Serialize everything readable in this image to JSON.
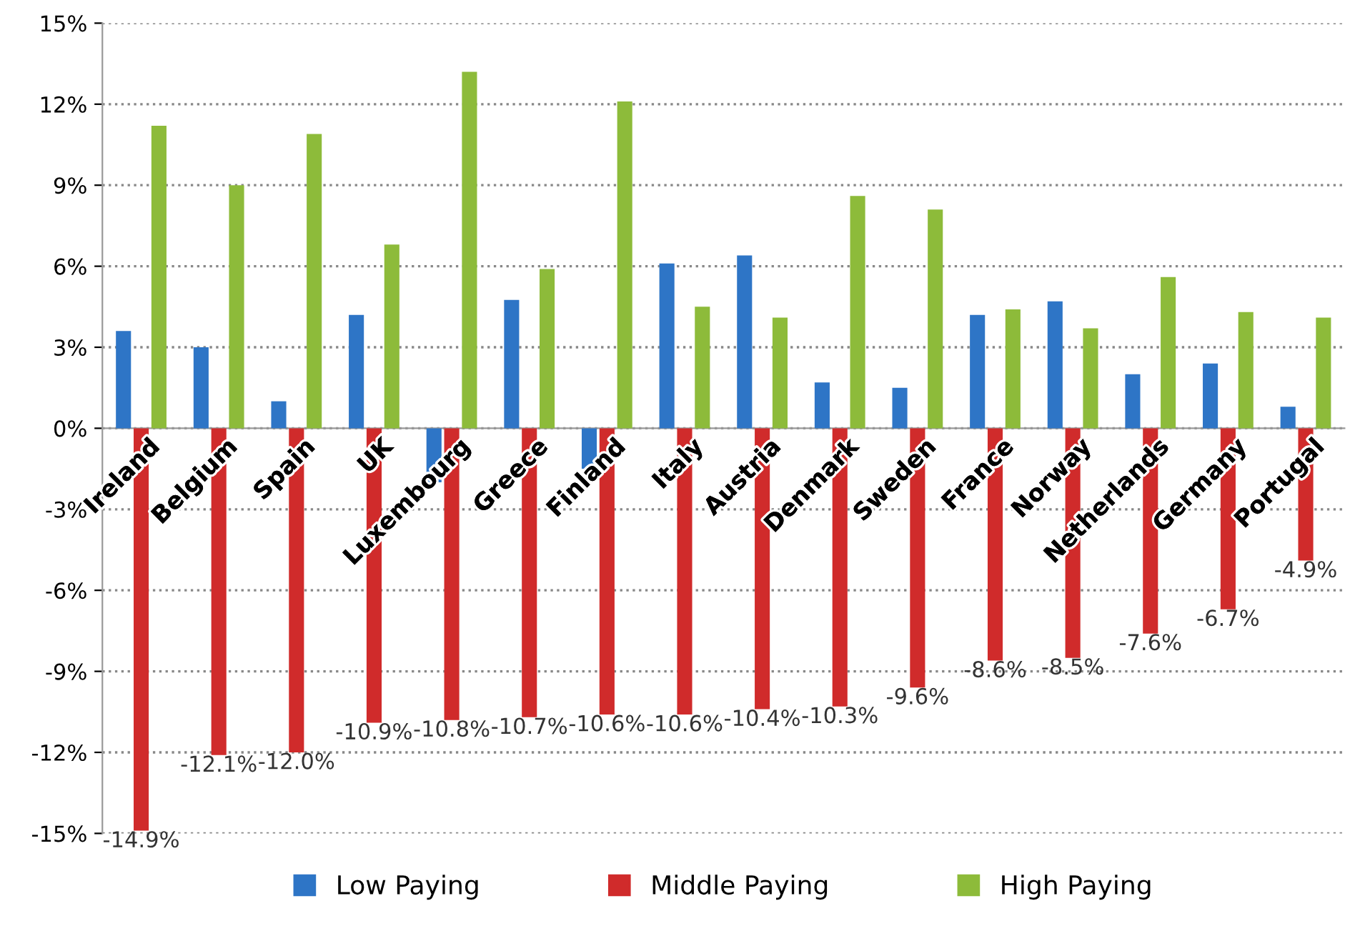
{
  "chart_data": {
    "type": "bar",
    "categories": [
      "Ireland",
      "Belgium",
      "Spain",
      "UK",
      "Luxembourg",
      "Greece",
      "Finland",
      "Italy",
      "Austria",
      "Denmark",
      "Sweden",
      "France",
      "Norway",
      "Netherlands",
      "Germany",
      "Portugal"
    ],
    "series": [
      {
        "name": "Low Paying",
        "color": "#2e75c6",
        "values": [
          3.6,
          3.0,
          1.0,
          4.2,
          -2.0,
          4.75,
          -1.5,
          6.1,
          6.4,
          1.7,
          1.5,
          4.2,
          4.7,
          2.0,
          2.4,
          0.8
        ]
      },
      {
        "name": "Middle Paying",
        "color": "#d02b2b",
        "values": [
          -14.9,
          -12.1,
          -12.0,
          -10.9,
          -10.8,
          -10.7,
          -10.6,
          -10.6,
          -10.4,
          -10.3,
          -9.6,
          -8.6,
          -8.5,
          -7.6,
          -6.7,
          -4.9
        ],
        "value_labels": [
          "-14.9%",
          "-12.1%",
          "-12.0%",
          "-10.9%",
          "-10.8%",
          "-10.7%",
          "-10.6%",
          "-10.6%",
          "-10.4%",
          "-10.3%",
          "-9.6%",
          "-8.6%",
          "-8.5%",
          "-7.6%",
          "-6.7%",
          "-4.9%"
        ]
      },
      {
        "name": "High Paying",
        "color": "#8dbb3a",
        "values": [
          11.2,
          9.0,
          10.9,
          6.8,
          13.2,
          5.9,
          12.1,
          4.5,
          4.1,
          8.6,
          8.1,
          4.4,
          3.7,
          5.6,
          4.3,
          4.1
        ]
      }
    ],
    "ylim": [
      -15,
      15
    ],
    "yticks": [
      {
        "value": -15,
        "label": "-15%"
      },
      {
        "value": -12,
        "label": "-12%"
      },
      {
        "value": -9,
        "label": "-9%"
      },
      {
        "value": -6,
        "label": "-6%"
      },
      {
        "value": -3,
        "label": "-3%"
      },
      {
        "value": 0,
        "label": "0%"
      },
      {
        "value": 3,
        "label": "3%"
      },
      {
        "value": 6,
        "label": "6%"
      },
      {
        "value": 9,
        "label": "9%"
      },
      {
        "value": 12,
        "label": "12%"
      },
      {
        "value": 15,
        "label": "15%"
      }
    ],
    "grid": "y",
    "legend": "bottom"
  }
}
